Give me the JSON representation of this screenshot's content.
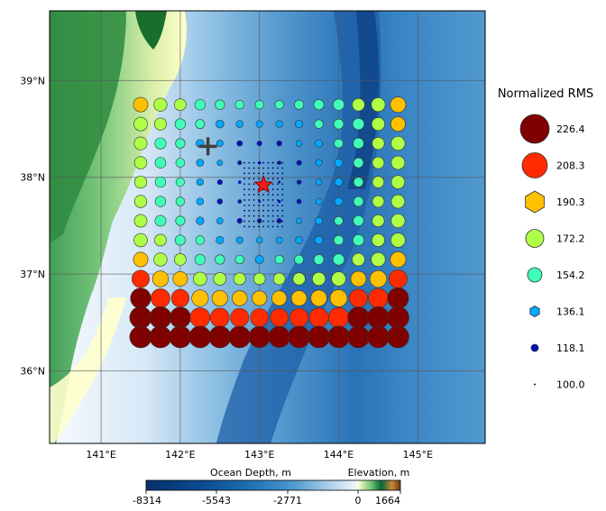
{
  "map": {
    "lat_labels": [
      "39°N",
      "38°N",
      "37°N",
      "36°N"
    ],
    "lon_labels": [
      "141°E",
      "142°E",
      "143°E",
      "144°E",
      "145°E"
    ],
    "lon_range": [
      140.35,
      145.85
    ],
    "lat_range": [
      35.25,
      39.72
    ],
    "epicenter": {
      "lon": 143.05,
      "lat": 37.92,
      "symbol": "star",
      "color": "#ff1a1a"
    },
    "cross_marker": {
      "lon": 142.35,
      "lat": 38.32,
      "symbol": "plus",
      "color": "#404040"
    },
    "grid_lons": [
      141.5,
      141.75,
      142.0,
      142.25,
      142.5,
      142.75,
      143.0,
      143.25,
      143.5,
      143.75,
      144.0,
      144.25,
      144.5,
      144.75
    ],
    "grid_lats": [
      38.75,
      38.55,
      38.35,
      38.15,
      37.95,
      37.75,
      37.55,
      37.35,
      37.15,
      36.95,
      36.75,
      36.55,
      36.35
    ]
  },
  "legend": {
    "title": "Normalized RMS",
    "entries": [
      {
        "label": "226.4",
        "value": 226.4,
        "color": "#800000",
        "shape": "circle"
      },
      {
        "label": "208.3",
        "value": 208.3,
        "color": "#ff2a00",
        "shape": "circle"
      },
      {
        "label": "190.3",
        "value": 190.3,
        "color": "#ffc000",
        "shape": "hexagon"
      },
      {
        "label": "172.2",
        "value": 172.2,
        "color": "#b0ff47",
        "shape": "circle"
      },
      {
        "label": "154.2",
        "value": 154.2,
        "color": "#40ffb8",
        "shape": "circle"
      },
      {
        "label": "136.1",
        "value": 136.1,
        "color": "#00a8ff",
        "shape": "hexagon"
      },
      {
        "label": "118.1",
        "value": 118.1,
        "color": "#0010c0",
        "shape": "circle"
      },
      {
        "label": "100.0",
        "value": 100.0,
        "color": "#000080",
        "shape": "dot"
      }
    ]
  },
  "colorbar": {
    "ocean_label": "Ocean Depth, m",
    "elev_label": "Elevation, m",
    "ticks": [
      "-8314",
      "-5543",
      "-2771",
      "0",
      "1664"
    ]
  }
}
